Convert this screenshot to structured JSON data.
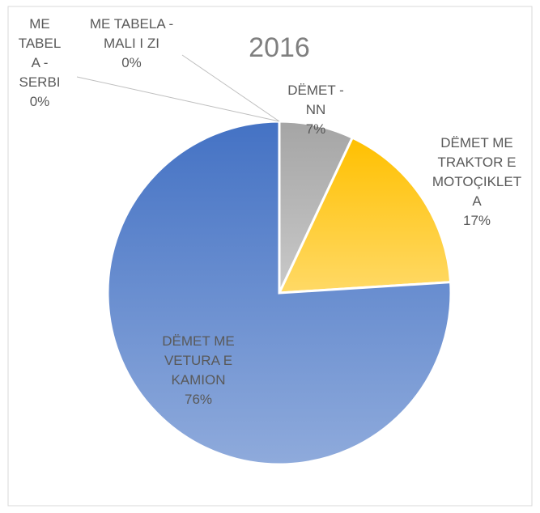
{
  "chart_data": {
    "type": "pie",
    "title": "2016",
    "categories": [
      "DËMET - NN",
      "DËMET ME TRAKTOR E MOTOÇIKLETA",
      "DËMET ME VETURA E KAMION",
      "ME TABELA - SERBI",
      "ME TABELA - MALI I ZI"
    ],
    "values": [
      7,
      17,
      76,
      0,
      0
    ],
    "value_labels": [
      "7%",
      "17%",
      "76%",
      "0%",
      "0%"
    ],
    "colors": [
      "#a5a5a5",
      "#ffc000",
      "#4472c4",
      "#264478",
      "#9e480e"
    ]
  }
}
